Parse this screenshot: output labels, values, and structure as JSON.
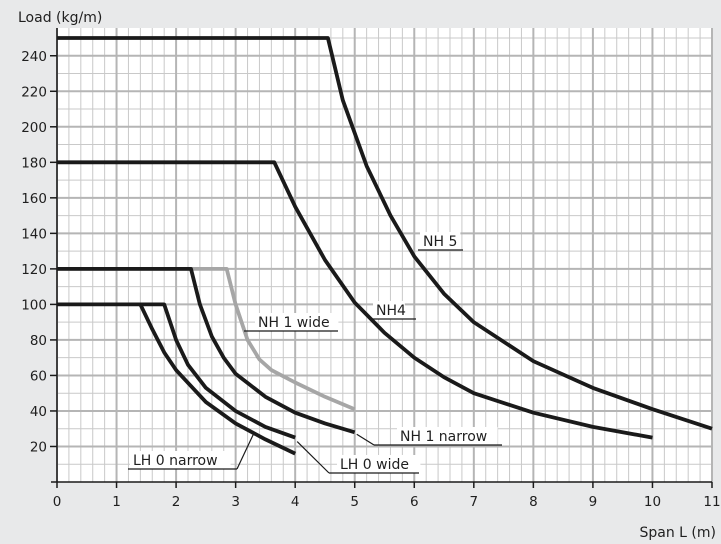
{
  "chart_data": {
    "type": "line",
    "title": "",
    "xlabel": "Span L (m)",
    "ylabel": "Load (kg/m)",
    "xlim": [
      0,
      11
    ],
    "ylim": [
      0,
      250
    ],
    "x_ticks": [
      0,
      1,
      2,
      3,
      4,
      5,
      6,
      7,
      8,
      9,
      10,
      11
    ],
    "y_ticks": [
      20,
      40,
      60,
      80,
      100,
      120,
      140,
      160,
      180,
      200,
      220,
      240
    ],
    "grid": true,
    "grid_minor_x_step": 0.2,
    "grid_minor_y_step": 10,
    "legend": "none",
    "colors": {
      "background": "#e8e9ea",
      "plot_background": "#ffffff",
      "grid": "#c9c9c9",
      "dark_series": "#1a1a1a",
      "grey_series": "#a6a6a6"
    },
    "series": [
      {
        "name": "NH 5",
        "color": "#1a1a1a",
        "x": [
          0,
          4.55,
          4.8,
          5.2,
          5.6,
          6.0,
          6.5,
          7.0,
          8.0,
          9.0,
          10.0,
          11.0
        ],
        "y": [
          250,
          250,
          215,
          178,
          150,
          127,
          106,
          90,
          68,
          53,
          41,
          30
        ]
      },
      {
        "name": "NH4",
        "color": "#1a1a1a",
        "x": [
          0,
          3.65,
          4.0,
          4.5,
          5.0,
          5.5,
          6.0,
          6.5,
          7.0,
          8.0,
          9.0,
          10.0
        ],
        "y": [
          180,
          180,
          155,
          125,
          101,
          84,
          70,
          59,
          50,
          39,
          31,
          25
        ]
      },
      {
        "name": "NH 1 wide",
        "color": "#a6a6a6",
        "x": [
          0,
          2.85,
          3.0,
          3.2,
          3.4,
          3.6,
          4.0,
          4.5,
          5.0
        ],
        "y": [
          120,
          120,
          100,
          80,
          69,
          63,
          56,
          48,
          41
        ]
      },
      {
        "name": "NH 1 narrow",
        "color": "#1a1a1a",
        "x": [
          0,
          2.25,
          2.4,
          2.6,
          2.8,
          3.0,
          3.5,
          4.0,
          4.5,
          5.0
        ],
        "y": [
          120,
          120,
          100,
          82,
          70,
          61,
          48,
          39,
          33,
          28
        ]
      },
      {
        "name": "LH 0 wide",
        "color": "#1a1a1a",
        "x": [
          0,
          1.8,
          2.0,
          2.2,
          2.5,
          3.0,
          3.5,
          4.0
        ],
        "y": [
          100,
          100,
          80,
          66,
          53,
          40,
          31,
          25
        ]
      },
      {
        "name": "LH 0 narrow",
        "color": "#1a1a1a",
        "x": [
          1.4,
          1.6,
          1.8,
          2.0,
          2.5,
          3.0,
          3.5,
          4.0
        ],
        "y": [
          100,
          86,
          73,
          63,
          45,
          33,
          24,
          16
        ]
      }
    ],
    "series_labels": [
      "NH 5",
      "NH4",
      "NH 1 wide",
      "NH 1 narrow",
      "LH 0 wide",
      "LH 0 narrow"
    ]
  }
}
